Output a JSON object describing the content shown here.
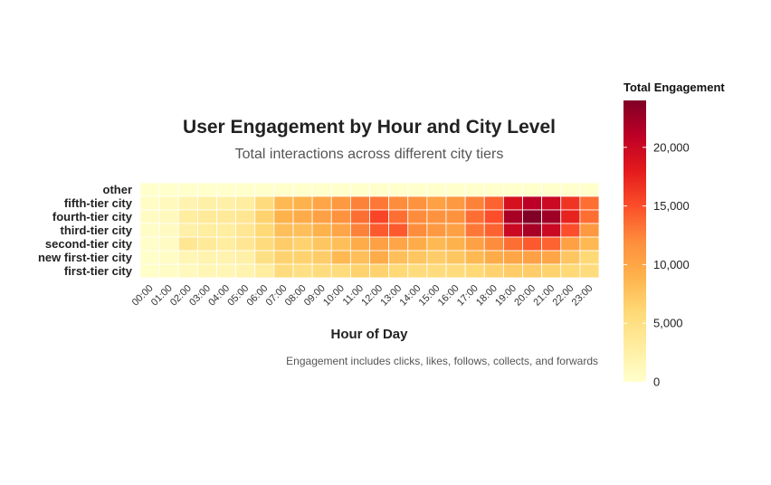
{
  "chart_data": {
    "type": "heatmap",
    "title": "User Engagement by Hour and City Level",
    "subtitle": "Total interactions across different city tiers",
    "xlabel": "Hour of Day",
    "ylabel": "",
    "caption": "Engagement includes clicks, likes, follows, collects, and forwards",
    "legend_title": "Total Engagement",
    "legend_placement": "right",
    "legend_ticks": [
      0,
      5000,
      10000,
      15000,
      20000
    ],
    "legend_tick_labels": [
      "0",
      "5,000",
      "10,000",
      "15,000",
      "20,000"
    ],
    "value_range": [
      0,
      24000
    ],
    "color_scale": [
      "#ffffcc",
      "#ffeda0",
      "#fed976",
      "#feb24c",
      "#fd8d3c",
      "#fc4e2a",
      "#e31a1c",
      "#bd0026",
      "#800026"
    ],
    "x": [
      "00:00",
      "01:00",
      "02:00",
      "03:00",
      "04:00",
      "05:00",
      "06:00",
      "07:00",
      "08:00",
      "09:00",
      "10:00",
      "11:00",
      "12:00",
      "13:00",
      "14:00",
      "15:00",
      "16:00",
      "17:00",
      "18:00",
      "19:00",
      "20:00",
      "21:00",
      "22:00",
      "23:00"
    ],
    "y": [
      "other",
      "fifth-tier city",
      "fourth-tier city",
      "third-tier city",
      "second-tier city",
      "new first-tier city",
      "first-tier city"
    ],
    "values": [
      [
        0,
        0,
        0,
        0,
        0,
        0,
        0,
        0,
        0,
        0,
        0,
        0,
        0,
        0,
        0,
        0,
        0,
        0,
        0,
        0,
        0,
        0,
        0,
        0
      ],
      [
        500,
        1000,
        2000,
        2500,
        2500,
        3000,
        5500,
        8500,
        9000,
        10000,
        11000,
        12500,
        13000,
        12000,
        11500,
        10500,
        11000,
        12500,
        14000,
        19000,
        21000,
        20000,
        16500,
        13500
      ],
      [
        600,
        1000,
        3000,
        3500,
        3500,
        4000,
        6500,
        9000,
        9500,
        10500,
        11500,
        13500,
        15500,
        13500,
        12000,
        11500,
        11500,
        13500,
        15000,
        22000,
        24000,
        22500,
        17500,
        13500
      ],
      [
        500,
        800,
        2500,
        3000,
        3000,
        4000,
        6000,
        8000,
        8000,
        9000,
        10000,
        12500,
        14500,
        14500,
        12000,
        11000,
        10500,
        13000,
        14000,
        20000,
        22000,
        20000,
        15000,
        11000
      ],
      [
        300,
        600,
        4000,
        3500,
        3000,
        4000,
        5500,
        7000,
        6500,
        7500,
        8000,
        9500,
        10500,
        10000,
        9500,
        8500,
        9000,
        10500,
        12000,
        13500,
        14500,
        14000,
        10500,
        8500
      ],
      [
        300,
        500,
        1500,
        2000,
        2000,
        2500,
        5000,
        6500,
        6500,
        7000,
        8500,
        8000,
        9500,
        8000,
        7500,
        7000,
        7500,
        8500,
        9500,
        10000,
        10500,
        10000,
        7500,
        6000
      ],
      [
        300,
        500,
        1000,
        1500,
        1500,
        2000,
        3000,
        5500,
        5000,
        5500,
        5500,
        6500,
        6500,
        6000,
        5500,
        5500,
        5500,
        6000,
        6500,
        7000,
        7000,
        6500,
        6000,
        5500
      ]
    ]
  }
}
